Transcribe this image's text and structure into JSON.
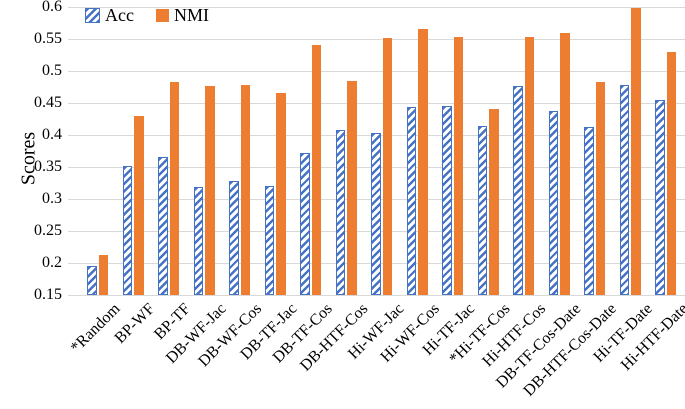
{
  "figure": {
    "y_axis_title": "Scores"
  },
  "chart_data": {
    "type": "bar",
    "title": "",
    "xlabel": "",
    "ylabel": "Scores",
    "ylim": [
      0.15,
      0.6
    ],
    "ytick_step": 0.05,
    "yticks": [
      "0.6",
      "0.55",
      "0.5",
      "0.45",
      "0.4",
      "0.35",
      "0.3",
      "0.25",
      "0.2",
      "0.15"
    ],
    "grid": true,
    "legend_position": "top-left",
    "categories": [
      "*Random",
      "BP-WF",
      "BP-TF",
      "DB-WF-Jac",
      "DB-WF-Cos",
      "DB-TF-Jac",
      "DB-TF-Cos",
      "DB-HTF-Cos",
      "Hi-WF-Jac",
      "Hi-WF-Cos",
      "Hi-TF-Jac",
      "*Hi-TF-Cos",
      "Hi-HTF-Cos",
      "DB-TF-Cos-Date",
      "DB-HTF-Cos-Date",
      "Hi-TF-Date",
      "Hi-HTF-Date"
    ],
    "series": [
      {
        "name": "Acc",
        "style": "hatched",
        "color": "#4472C4",
        "values": [
          0.196,
          0.352,
          0.366,
          0.319,
          0.328,
          0.32,
          0.372,
          0.408,
          0.403,
          0.444,
          0.446,
          0.414,
          0.476,
          0.437,
          0.413,
          0.478,
          0.454
        ]
      },
      {
        "name": "NMI",
        "style": "solid",
        "color": "#ED7D31",
        "values": [
          0.212,
          0.43,
          0.483,
          0.476,
          0.478,
          0.466,
          0.54,
          0.484,
          0.552,
          0.565,
          0.553,
          0.441,
          0.553,
          0.559,
          0.483,
          0.598,
          0.53
        ]
      }
    ],
    "gridline_color": "#d9d9d9"
  }
}
